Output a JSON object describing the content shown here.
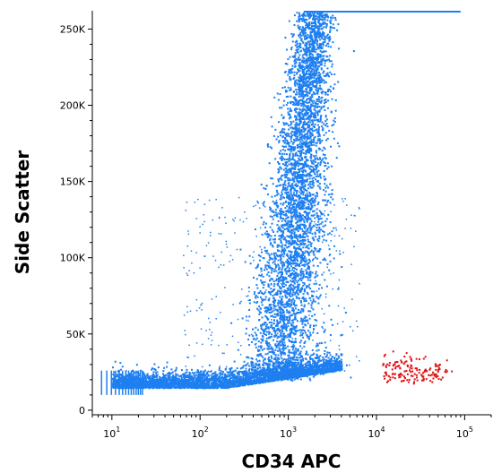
{
  "chart_data": {
    "type": "scatter",
    "xlabel": "CD34 APC",
    "ylabel": "Side Scatter",
    "x_scale": "log",
    "xlim": [
      6,
      200000
    ],
    "ylim": [
      -3000,
      262000
    ],
    "x_ticks": [
      {
        "base": "10",
        "exp": "1",
        "value": 10
      },
      {
        "base": "10",
        "exp": "2",
        "value": 100
      },
      {
        "base": "10",
        "exp": "3",
        "value": 1000
      },
      {
        "base": "10",
        "exp": "4",
        "value": 10000
      },
      {
        "base": "10",
        "exp": "5",
        "value": 100000
      }
    ],
    "y_ticks": [
      {
        "label": "0",
        "value": 0
      },
      {
        "label": "50K",
        "value": 50000
      },
      {
        "label": "100K",
        "value": 100000
      },
      {
        "label": "150K",
        "value": 150000
      },
      {
        "label": "200K",
        "value": 200000
      },
      {
        "label": "250K",
        "value": 250000
      }
    ],
    "series": [
      {
        "color": "#1e7ff0",
        "description_points": "dense population",
        "points": [
          [
            12,
            22000
          ],
          [
            15,
            20000
          ],
          [
            20,
            19000
          ],
          [
            30,
            18000
          ],
          [
            50,
            17000
          ],
          [
            80,
            18000
          ],
          [
            120,
            19000
          ],
          [
            200,
            20000
          ],
          [
            300,
            22000
          ],
          [
            500,
            26000
          ],
          [
            700,
            40000
          ],
          [
            900,
            70000
          ],
          [
            1100,
            110000
          ],
          [
            1300,
            150000
          ],
          [
            1500,
            190000
          ],
          [
            1700,
            230000
          ],
          [
            1900,
            258000
          ],
          [
            2200,
            240000
          ],
          [
            2500,
            200000
          ],
          [
            2800,
            160000
          ],
          [
            3200,
            120000
          ],
          [
            3600,
            80000
          ],
          [
            4000,
            50000
          ],
          [
            4500,
            30000
          ],
          [
            5000,
            22000
          ],
          [
            3000,
            60000
          ],
          [
            2000,
            90000
          ],
          [
            1000,
            40000
          ],
          [
            600,
            30000
          ],
          [
            400,
            24000
          ]
        ]
      },
      {
        "color": "#e01010",
        "points": [
          [
            14000,
            22000
          ],
          [
            16000,
            28000
          ],
          [
            18000,
            24000
          ],
          [
            20000,
            20000
          ],
          [
            22000,
            30000
          ],
          [
            25000,
            26000
          ],
          [
            28000,
            22000
          ],
          [
            30000,
            34000
          ],
          [
            33000,
            25000
          ],
          [
            36000,
            21000
          ],
          [
            40000,
            28000
          ],
          [
            45000,
            24000
          ],
          [
            50000,
            30000
          ],
          [
            55000,
            22000
          ],
          [
            12000,
            36000
          ],
          [
            60000,
            27000
          ],
          [
            26000,
            18000
          ],
          [
            19000,
            32000
          ],
          [
            42000,
            19000
          ],
          [
            70000,
            26000
          ]
        ]
      }
    ]
  },
  "colors": {
    "population": "#1e7ff0",
    "gated": "#e01010"
  }
}
